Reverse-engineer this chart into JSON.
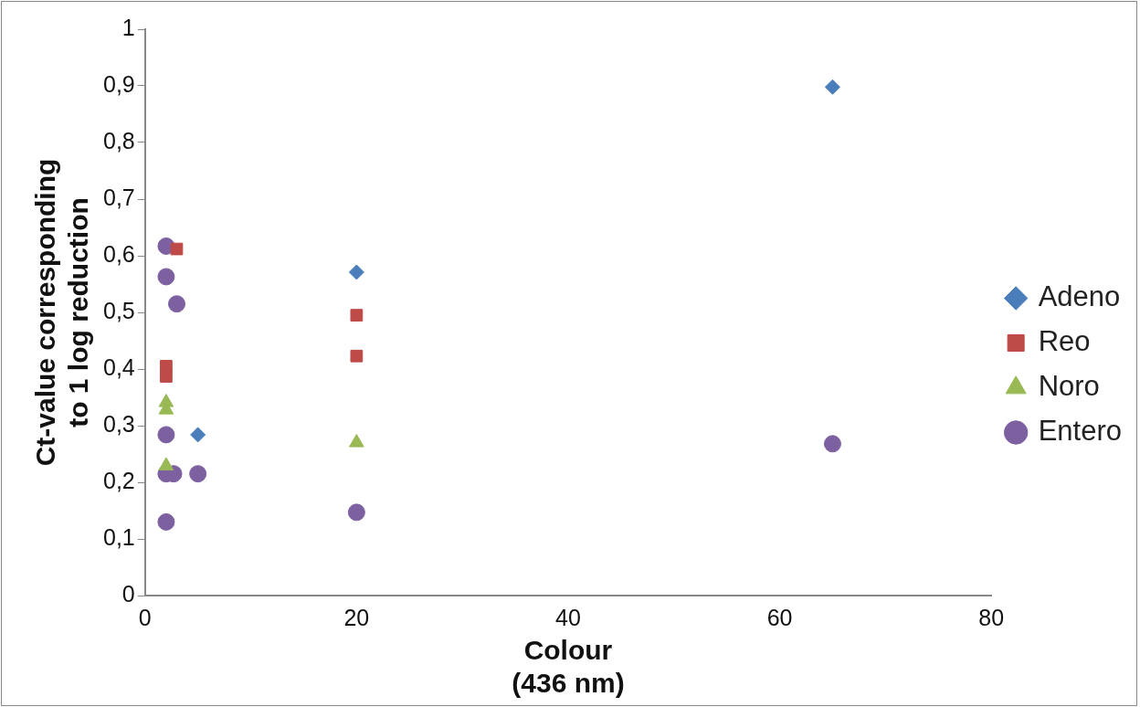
{
  "chart_data": {
    "type": "scatter",
    "xlabel": "Colour\n(436 nm)",
    "ylabel": "Ct-value corresponding\nto 1 log reduction",
    "xlim": [
      0,
      80
    ],
    "xticks": [
      0,
      20,
      40,
      60,
      80
    ],
    "ylim": [
      0,
      1
    ],
    "yticks": [
      0,
      {
        "value": 0.1,
        "label": "0,1"
      },
      {
        "value": 0.2,
        "label": "0,2"
      },
      {
        "value": 0.3,
        "label": "0,3"
      },
      {
        "value": 0.4,
        "label": "0,4"
      },
      {
        "value": 0.5,
        "label": "0,5"
      },
      {
        "value": 0.6,
        "label": "0,6"
      },
      {
        "value": 0.7,
        "label": "0,7"
      },
      {
        "value": 0.8,
        "label": "0,8"
      },
      {
        "value": 0.9,
        "label": "0,9"
      },
      1
    ],
    "grid": false,
    "legend": "right",
    "series": [
      {
        "name": "Adeno",
        "color": "#4a7ebb",
        "marker": "diamond",
        "x": [
          65,
          20,
          5
        ],
        "values": [
          0.898,
          0.571,
          0.284
        ]
      },
      {
        "name": "Reo",
        "color": "#be4b48",
        "marker": "square",
        "x": [
          3,
          2,
          2,
          20,
          20
        ],
        "values": [
          0.612,
          0.405,
          0.387,
          0.495,
          0.423
        ]
      },
      {
        "name": "Noro",
        "color": "#98b954",
        "marker": "triangle",
        "x": [
          2,
          2,
          2,
          20
        ],
        "values": [
          0.341,
          0.328,
          0.229,
          0.27
        ]
      },
      {
        "name": "Entero",
        "color": "#7d60a0",
        "marker": "circle",
        "x": [
          2,
          2,
          3,
          2,
          2,
          2.7,
          5,
          2,
          20,
          65
        ],
        "values": [
          0.617,
          0.563,
          0.515,
          0.284,
          0.215,
          0.215,
          0.215,
          0.13,
          0.147,
          0.268
        ]
      }
    ]
  }
}
